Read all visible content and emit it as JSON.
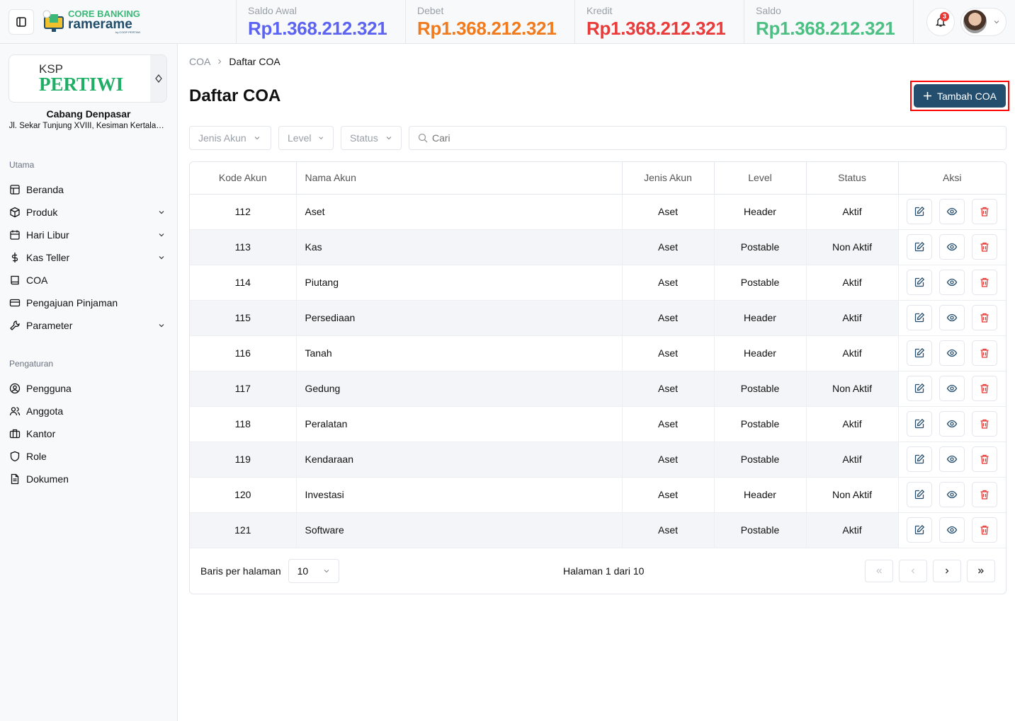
{
  "header": {
    "logo_line1": "CORE BANKING",
    "logo_line2": "ramerame",
    "logo_line3": "by COOP PERTIWI",
    "stats": [
      {
        "label": "Saldo Awal",
        "value": "Rp1.368.212.321",
        "color": "#5b63f0"
      },
      {
        "label": "Debet",
        "value": "Rp1.368.212.321",
        "color": "#f07a1c"
      },
      {
        "label": "Kredit",
        "value": "Rp1.368.212.321",
        "color": "#ea3b3b"
      },
      {
        "label": "Saldo",
        "value": "Rp1.368.212.321",
        "color": "#4cc083"
      }
    ],
    "notification_count": "3"
  },
  "sidebar": {
    "org_logo_top": "KSP",
    "org_logo_main": "PERTIWI",
    "branch": "Cabang Denpasar",
    "address": "Jl. Sekar Tunjung XVIII, Kesiman Kertalangu",
    "section1": "Utama",
    "items1": [
      {
        "label": "Beranda",
        "icon": "layout-icon"
      },
      {
        "label": "Produk",
        "icon": "box-icon",
        "chevron": true
      },
      {
        "label": "Hari Libur",
        "icon": "calendar-icon",
        "chevron": true
      },
      {
        "label": "Kas Teller",
        "icon": "dollar-icon",
        "chevron": true
      },
      {
        "label": "COA",
        "icon": "book-icon"
      },
      {
        "label": "Pengajuan Pinjaman",
        "icon": "credit-card-icon"
      },
      {
        "label": "Parameter",
        "icon": "wrench-icon",
        "chevron": true
      }
    ],
    "section2": "Pengaturan",
    "items2": [
      {
        "label": "Pengguna",
        "icon": "user-circle-icon"
      },
      {
        "label": "Anggota",
        "icon": "users-icon"
      },
      {
        "label": "Kantor",
        "icon": "briefcase-icon"
      },
      {
        "label": "Role",
        "icon": "shield-icon"
      },
      {
        "label": "Dokumen",
        "icon": "file-icon"
      }
    ]
  },
  "main": {
    "breadcrumb": [
      "COA",
      "Daftar COA"
    ],
    "title": "Daftar COA",
    "add_button": "Tambah COA",
    "filters": {
      "jenis": "Jenis Akun",
      "level": "Level",
      "status": "Status",
      "search_placeholder": "Cari"
    },
    "columns": [
      "Kode Akun",
      "Nama Akun",
      "Jenis Akun",
      "Level",
      "Status",
      "Aksi"
    ],
    "rows": [
      [
        "112",
        "Aset",
        "Aset",
        "Header",
        "Aktif"
      ],
      [
        "113",
        "Kas",
        "Aset",
        "Postable",
        "Non Aktif"
      ],
      [
        "114",
        "Piutang",
        "Aset",
        "Postable",
        "Aktif"
      ],
      [
        "115",
        "Persediaan",
        "Aset",
        "Header",
        "Aktif"
      ],
      [
        "116",
        "Tanah",
        "Aset",
        "Header",
        "Aktif"
      ],
      [
        "117",
        "Gedung",
        "Aset",
        "Postable",
        "Non Aktif"
      ],
      [
        "118",
        "Peralatan",
        "Aset",
        "Postable",
        "Aktif"
      ],
      [
        "119",
        "Kendaraan",
        "Aset",
        "Postable",
        "Aktif"
      ],
      [
        "120",
        "Investasi",
        "Aset",
        "Header",
        "Non Aktif"
      ],
      [
        "121",
        "Software",
        "Aset",
        "Postable",
        "Aktif"
      ]
    ],
    "footer": {
      "rows_label": "Baris per halaman",
      "rows_value": "10",
      "page_info": "Halaman 1 dari 10"
    }
  }
}
